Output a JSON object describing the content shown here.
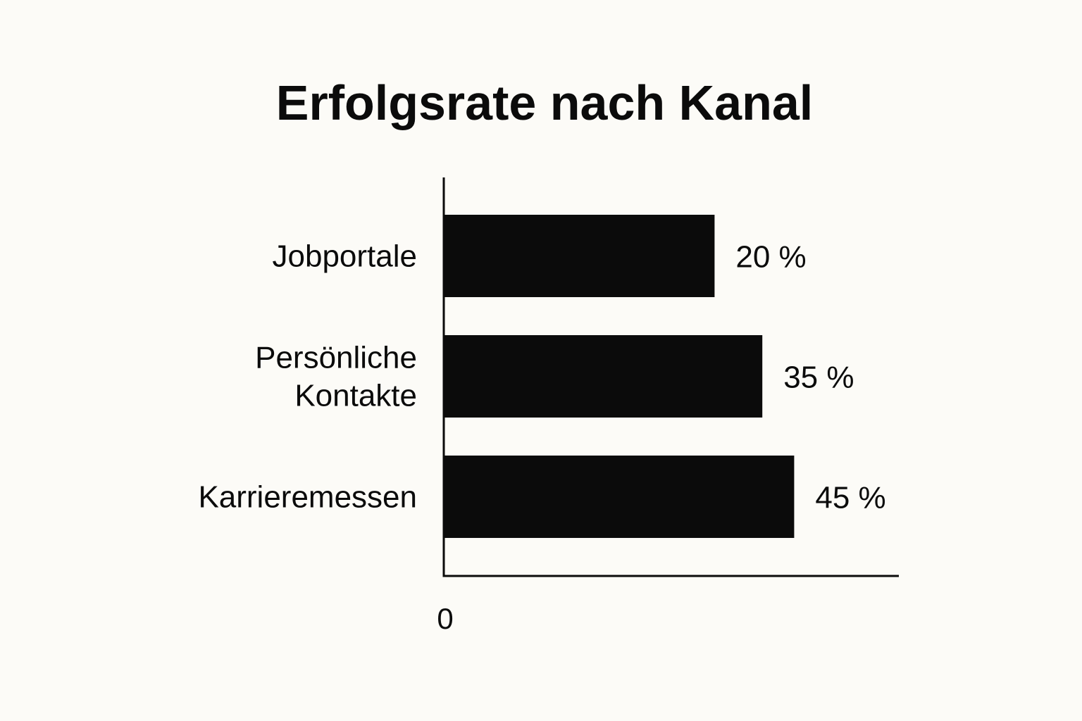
{
  "chart_data": {
    "type": "bar",
    "orientation": "horizontal",
    "title": "Erfolgsrate nach Kanal",
    "categories": [
      [
        "Jobportale"
      ],
      [
        "Persönliche",
        "Kontakte"
      ],
      [
        "Karrieremessen"
      ]
    ],
    "values": [
      20,
      35,
      45
    ],
    "value_labels": [
      "20 %",
      "35 %",
      "45 %"
    ],
    "xlabel": "",
    "ylabel": "",
    "x_ticks": [
      "0"
    ],
    "grid": false,
    "bar_color": "#0b0b0b",
    "axis_color": "#0b0b0b",
    "background_color": "#fcfbf7"
  }
}
